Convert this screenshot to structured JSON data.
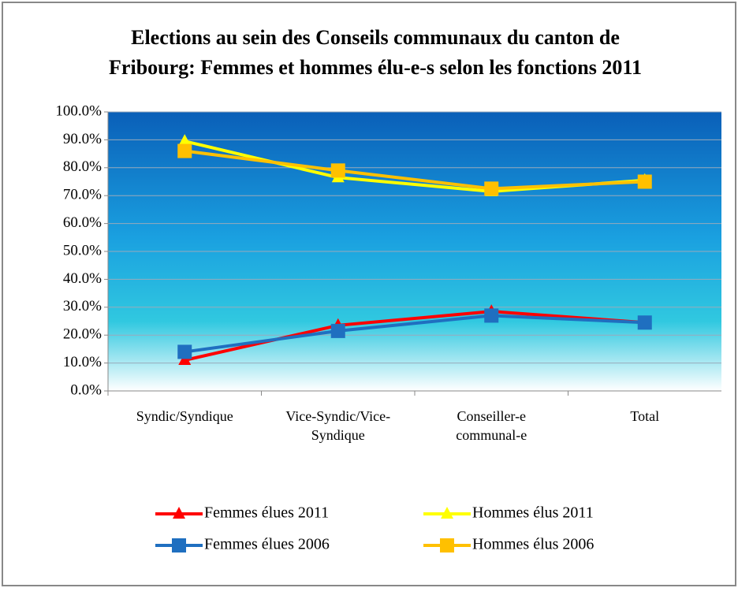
{
  "chart_data": {
    "type": "line",
    "title": [
      "Elections au sein des Conseils communaux du canton de",
      "Fribourg: Femmes et hommes élu-e-s selon les fonctions 2011"
    ],
    "categories": [
      [
        "Syndic/Syndique"
      ],
      [
        "Vice-Syndic/Vice-",
        "Syndique"
      ],
      [
        "Conseiller-e",
        "communal-e"
      ],
      [
        "Total"
      ]
    ],
    "series": [
      {
        "name": "Femmes élues 2011",
        "color": "#ff0000",
        "marker": "triangle",
        "values": [
          11,
          23.5,
          28.5,
          24.5
        ]
      },
      {
        "name": "Hommes élus 2011",
        "color": "#ffff00",
        "marker": "triangle",
        "values": [
          89.5,
          76.5,
          71.5,
          75.5
        ]
      },
      {
        "name": "Femmes élues 2006",
        "color": "#1f6fc0",
        "marker": "square",
        "values": [
          14,
          21.5,
          27,
          24.5
        ]
      },
      {
        "name": "Hommes élus 2006",
        "color": "#ffc000",
        "marker": "square",
        "values": [
          86,
          79,
          72.5,
          75
        ]
      }
    ],
    "ylim": [
      0,
      100
    ],
    "yticks": [
      {
        "value": 0,
        "label": "0.0%"
      },
      {
        "value": 10,
        "label": "10.0%"
      },
      {
        "value": 20,
        "label": "20.0%"
      },
      {
        "value": 30,
        "label": "30.0%"
      },
      {
        "value": 40,
        "label": "40.0%"
      },
      {
        "value": 50,
        "label": "50.0%"
      },
      {
        "value": 60,
        "label": "60.0%"
      },
      {
        "value": 70,
        "label": "70.0%"
      },
      {
        "value": 80,
        "label": "80.0%"
      },
      {
        "value": 90,
        "label": "90.0%"
      },
      {
        "value": 100,
        "label": "100.0%"
      }
    ],
    "grid": true
  }
}
